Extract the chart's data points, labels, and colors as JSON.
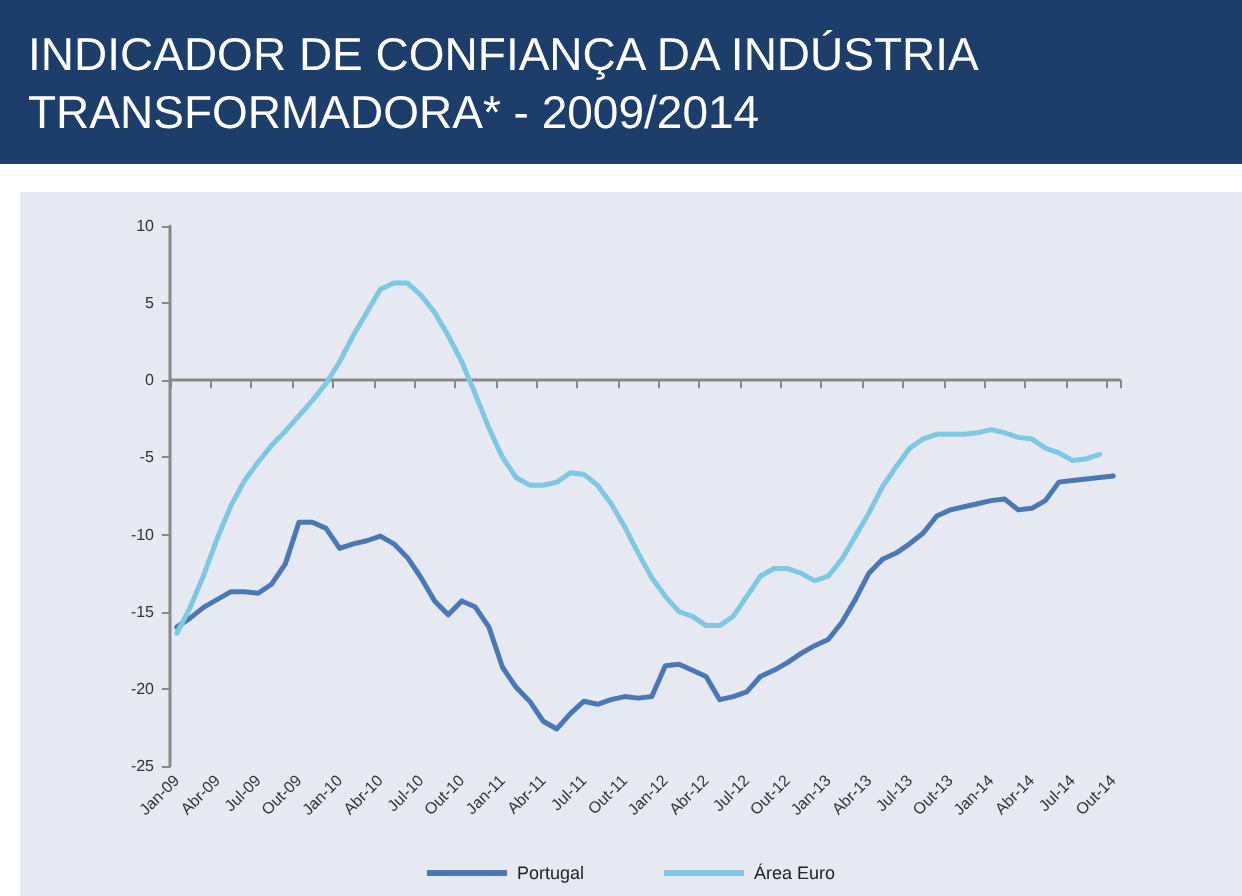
{
  "chart_data": {
    "type": "line",
    "title": "INDICADOR DE CONFIANÇA DA INDÚSTRIA TRANSFORMADORA* - 2009/2014",
    "categories": [
      "Jan-09",
      null,
      null,
      "Abr-09",
      null,
      null,
      "Jul-09",
      null,
      null,
      "Out-09",
      null,
      null,
      "Jan-10",
      null,
      null,
      "Abr-10",
      null,
      null,
      "Jul-10",
      null,
      null,
      "Out-10",
      null,
      null,
      "Jan-11",
      null,
      null,
      "Abr-11",
      null,
      null,
      "Jul-11",
      null,
      null,
      "Out-11",
      null,
      null,
      "Jan-12",
      null,
      null,
      "Abr-12",
      null,
      null,
      "Jul-12",
      null,
      null,
      "Out-12",
      null,
      null,
      "Jan-13",
      null,
      null,
      "Abr-13",
      null,
      null,
      "Jul-13",
      null,
      null,
      "Out-13",
      null,
      null,
      "Jan-14",
      null,
      null,
      "Abr-14",
      null,
      null,
      "Jul-14",
      null,
      null,
      "Out-14"
    ],
    "series": [
      {
        "name": "Portugal",
        "color": "#4a78b4",
        "values": [
          -16.0,
          -15.4,
          -14.7,
          -14.2,
          -13.7,
          -13.7,
          -13.8,
          -13.2,
          -11.9,
          -9.2,
          -9.2,
          -9.6,
          -10.9,
          -10.6,
          -10.4,
          -10.1,
          -10.6,
          -11.5,
          -12.8,
          -14.3,
          -15.2,
          -14.3,
          -14.7,
          -16.0,
          -18.6,
          -19.9,
          -20.8,
          -22.1,
          -22.6,
          -21.6,
          -20.8,
          -21.0,
          -20.7,
          -20.5,
          -20.6,
          -20.5,
          -18.5,
          -18.4,
          -18.8,
          -19.2,
          -20.7,
          -20.5,
          -20.2,
          -19.2,
          -18.8,
          -18.3,
          -17.7,
          -17.2,
          -16.8,
          -15.7,
          -14.2,
          -12.5,
          -11.6,
          -11.2,
          -10.6,
          -9.9,
          -8.8,
          -8.4,
          -8.2,
          -8.0,
          -7.8,
          -7.7,
          -8.4,
          -8.3,
          -7.8,
          -6.6,
          -6.5,
          -6.4,
          -6.3,
          -6.2
        ]
      },
      {
        "name": "Área Euro",
        "color": "#7ec8e3",
        "values": [
          -16.4,
          -14.7,
          -12.6,
          -10.2,
          -8.1,
          -6.5,
          -5.3,
          -4.2,
          -3.3,
          -2.3,
          -1.3,
          -0.2,
          1.2,
          2.9,
          4.4,
          5.9,
          6.3,
          6.3,
          5.5,
          4.4,
          2.9,
          1.2,
          -0.9,
          -3.1,
          -5.0,
          -6.3,
          -6.8,
          -6.8,
          -6.6,
          -6.0,
          -6.1,
          -6.8,
          -8.0,
          -9.5,
          -11.2,
          -12.8,
          -14.0,
          -15.0,
          -15.3,
          -15.9,
          -15.9,
          -15.3,
          -14.0,
          -12.7,
          -12.2,
          -12.2,
          -12.5,
          -13.0,
          -12.7,
          -11.6,
          -10.1,
          -8.6,
          -6.9,
          -5.6,
          -4.4,
          -3.8,
          -3.5,
          -3.5,
          -3.5,
          -3.4,
          -3.2,
          -3.4,
          -3.7,
          -3.8,
          -4.4,
          -4.7,
          -5.2,
          -5.1,
          -4.8,
          null
        ]
      }
    ],
    "ylim": [
      -25,
      10
    ],
    "yticks": [
      -25,
      -20,
      -15,
      -10,
      -5,
      0,
      5,
      10
    ],
    "legend": "bottom",
    "marker": "none",
    "line_style": "solid"
  }
}
